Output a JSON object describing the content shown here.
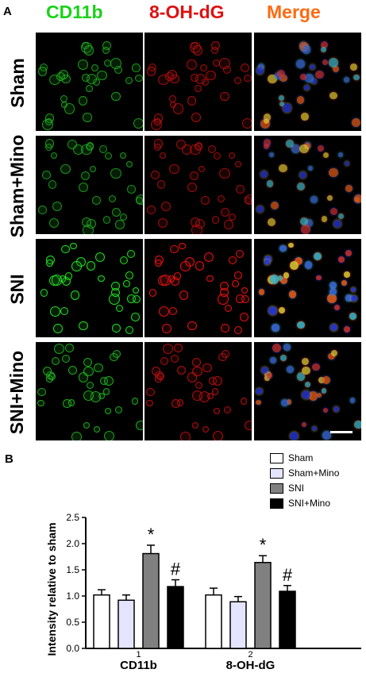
{
  "panel_a": {
    "letter": "A",
    "columns": [
      {
        "label": "CD11b",
        "color": "#19d219"
      },
      {
        "label": "8-OH-dG",
        "color": "#e01010"
      },
      {
        "label": "Merge",
        "color": "#ff6a10"
      }
    ],
    "rows": [
      "Sham",
      "Sham+Mino",
      "SNI",
      "SNI+Mino"
    ]
  },
  "panel_b": {
    "letter": "B"
  },
  "chart_data": {
    "type": "bar",
    "categories": [
      "CD11b",
      "8-OH-dG"
    ],
    "category_indices": [
      "1",
      "2"
    ],
    "ylabel": "Intensity relative to sham",
    "ylim": [
      0,
      2.5
    ],
    "yticks": [
      "0.0",
      "0.5",
      "1.0",
      "1.5",
      "2.0",
      "2.5"
    ],
    "legend_position": "top-right",
    "series": [
      {
        "name": "Sham",
        "color": "#ffffff",
        "values": [
          1.02,
          1.02
        ],
        "errors": [
          0.1,
          0.13
        ]
      },
      {
        "name": "Sham+Mino",
        "color": "#e4e4ff",
        "values": [
          0.92,
          0.89
        ],
        "errors": [
          0.1,
          0.1
        ]
      },
      {
        "name": "SNI",
        "color": "#808080",
        "values": [
          1.81,
          1.64
        ],
        "errors": [
          0.16,
          0.13
        ],
        "annotation": "*"
      },
      {
        "name": "SNI+Mino",
        "color": "#000000",
        "values": [
          1.18,
          1.09
        ],
        "errors": [
          0.13,
          0.11
        ],
        "annotation": "#"
      }
    ]
  }
}
